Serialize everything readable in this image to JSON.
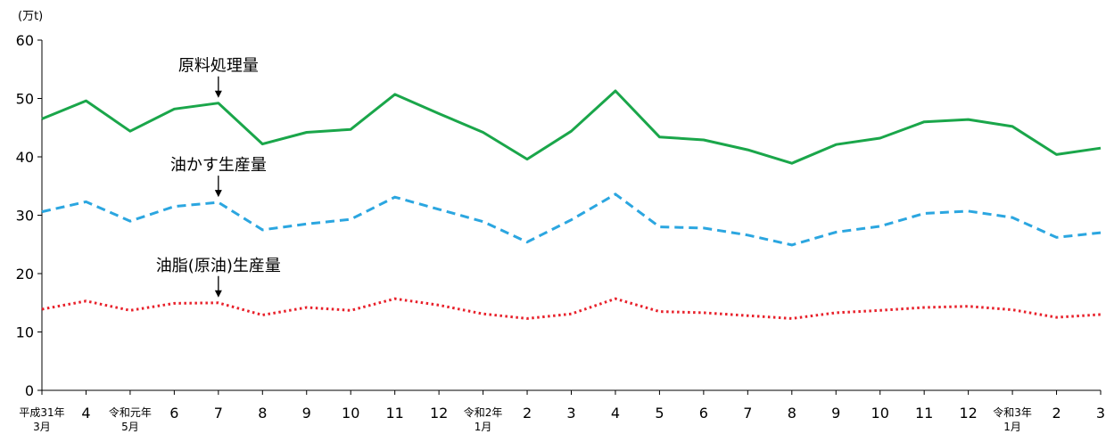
{
  "chart_data": {
    "type": "line",
    "unit": "(万t)",
    "ylim": [
      0,
      60
    ],
    "yticks": [
      "0",
      "10",
      "20",
      "30",
      "40",
      "50",
      "60"
    ],
    "x_labels": [
      [
        "平成31年",
        "3月"
      ],
      [
        "4"
      ],
      [
        "令和元年",
        "5月"
      ],
      [
        "6"
      ],
      [
        "7"
      ],
      [
        "8"
      ],
      [
        "9"
      ],
      [
        "10"
      ],
      [
        "11"
      ],
      [
        "12"
      ],
      [
        "令和2年",
        "1月"
      ],
      [
        "2"
      ],
      [
        "3"
      ],
      [
        "4"
      ],
      [
        "5"
      ],
      [
        "6"
      ],
      [
        "7"
      ],
      [
        "8"
      ],
      [
        "9"
      ],
      [
        "10"
      ],
      [
        "11"
      ],
      [
        "12"
      ],
      [
        "令和3年",
        "1月"
      ],
      [
        "2"
      ],
      [
        "3"
      ]
    ],
    "series": [
      {
        "name": "原料処理量",
        "color": "#1aa64a",
        "style": "solid",
        "values": [
          46.5,
          49.6,
          44.4,
          48.2,
          49.2,
          42.2,
          44.2,
          44.7,
          50.7,
          47.4,
          44.2,
          39.6,
          44.4,
          51.3,
          43.4,
          42.9,
          41.2,
          38.9,
          42.1,
          43.2,
          46.0,
          46.4,
          45.2,
          40.4,
          41.5
        ]
      },
      {
        "name": "油かす生産量",
        "color": "#2ba6e0",
        "style": "dashed",
        "values": [
          30.6,
          32.3,
          29.0,
          31.5,
          32.2,
          27.5,
          28.5,
          29.3,
          33.1,
          31.0,
          28.9,
          25.4,
          29.2,
          33.6,
          28.0,
          27.8,
          26.6,
          24.9,
          27.1,
          28.1,
          30.3,
          30.7,
          29.6,
          26.2,
          27.0
        ]
      },
      {
        "name": "油脂(原油)生産量",
        "color": "#e8202a",
        "style": "dotted",
        "values": [
          13.9,
          15.3,
          13.7,
          14.9,
          15.0,
          12.9,
          14.2,
          13.7,
          15.7,
          14.6,
          13.1,
          12.3,
          13.1,
          15.7,
          13.5,
          13.3,
          12.8,
          12.3,
          13.3,
          13.7,
          14.2,
          14.4,
          13.8,
          12.5,
          13.0
        ]
      }
    ],
    "annotations": [
      {
        "text": "原料処理量",
        "series": 0,
        "x_index": 4
      },
      {
        "text": "油かす生産量",
        "series": 1,
        "x_index": 4
      },
      {
        "text": "油脂(原油)生産量",
        "series": 2,
        "x_index": 4
      }
    ]
  }
}
